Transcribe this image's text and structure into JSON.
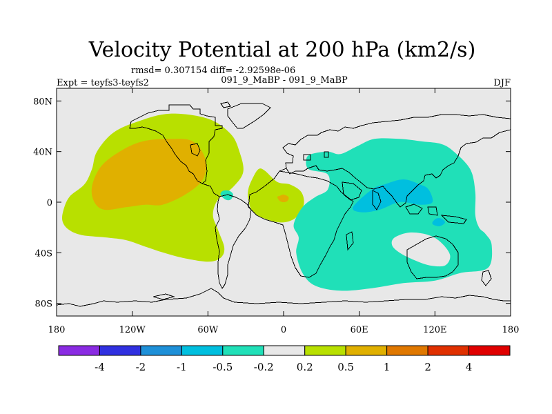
{
  "chart_data": {
    "type": "filled-contour-map",
    "title": "Velocity Potential at 200 hPa (km2/s)",
    "stats_line": "rmsd= 0.307154 diff= -2.92598e-06",
    "left_label": "Expt = teyfs3-teyfs2",
    "center_label": "091_9_MaBP - 091_9_MaBP",
    "right_label": "DJF",
    "xlim": [
      -180,
      180
    ],
    "ylim": [
      -90,
      90
    ],
    "x_ticks": [
      {
        "value": -180,
        "label": "180"
      },
      {
        "value": -120,
        "label": "120W"
      },
      {
        "value": -60,
        "label": "60W"
      },
      {
        "value": 0,
        "label": "0"
      },
      {
        "value": 60,
        "label": "60E"
      },
      {
        "value": 120,
        "label": "120E"
      },
      {
        "value": 180,
        "label": "180"
      }
    ],
    "y_ticks": [
      {
        "value": 80,
        "label": "80N"
      },
      {
        "value": 40,
        "label": "40N"
      },
      {
        "value": 0,
        "label": "0"
      },
      {
        "value": -40,
        "label": "40S"
      },
      {
        "value": -80,
        "label": "80S"
      }
    ],
    "colorbar": {
      "colors": [
        "#8a2be2",
        "#3030e0",
        "#1e90d8",
        "#00bfdf",
        "#20e0b8",
        "#e8e8e8",
        "#b8e000",
        "#e0b000",
        "#e07800",
        "#e03000",
        "#e00000"
      ],
      "labels": [
        "-4",
        "-2",
        "-1",
        "-0.5",
        "-0.2",
        "0.2",
        "0.5",
        "1",
        "2",
        "4"
      ]
    },
    "regions": [
      {
        "level": "0.2 to 0.5",
        "fill": "#b8e000",
        "points": [
          [
            -175,
            -16
          ],
          [
            -170,
            -22
          ],
          [
            -160,
            -26
          ],
          [
            -140,
            -28
          ],
          [
            -125,
            -30
          ],
          [
            -110,
            -35
          ],
          [
            -95,
            -40
          ],
          [
            -80,
            -44
          ],
          [
            -60,
            -47
          ],
          [
            -50,
            -44
          ],
          [
            -47,
            -36
          ],
          [
            -52,
            -22
          ],
          [
            -56,
            -10
          ],
          [
            -52,
            2
          ],
          [
            -40,
            12
          ],
          [
            -32,
            24
          ],
          [
            -35,
            40
          ],
          [
            -42,
            54
          ],
          [
            -60,
            66
          ],
          [
            -90,
            70
          ],
          [
            -115,
            64
          ],
          [
            -135,
            55
          ],
          [
            -148,
            40
          ],
          [
            -152,
            26
          ],
          [
            -158,
            14
          ],
          [
            -170,
            4
          ],
          [
            -175,
            -8
          ]
        ]
      },
      {
        "level": "0.5 to 1",
        "fill": "#e0b000",
        "points": [
          [
            -152,
            12
          ],
          [
            -150,
            0
          ],
          [
            -142,
            -6
          ],
          [
            -125,
            -4
          ],
          [
            -110,
            -2
          ],
          [
            -96,
            -2
          ],
          [
            -78,
            6
          ],
          [
            -64,
            18
          ],
          [
            -62,
            34
          ],
          [
            -72,
            48
          ],
          [
            -90,
            50
          ],
          [
            -112,
            48
          ],
          [
            -130,
            40
          ],
          [
            -145,
            28
          ]
        ]
      },
      {
        "level": "0.2 to 0.5",
        "fill": "#b8e000",
        "points": [
          [
            -28,
            2
          ],
          [
            -24,
            -8
          ],
          [
            -12,
            -14
          ],
          [
            0,
            -16
          ],
          [
            10,
            -12
          ],
          [
            16,
            -2
          ],
          [
            14,
            8
          ],
          [
            5,
            14
          ],
          [
            -5,
            16
          ],
          [
            -15,
            25
          ],
          [
            -20,
            26
          ],
          [
            -25,
            18
          ],
          [
            -28,
            10
          ]
        ]
      },
      {
        "level": "0.5 to 1",
        "fill": "#e0b000",
        "points": [
          [
            -5,
            4
          ],
          [
            -3,
            1
          ],
          [
            0,
            0
          ],
          [
            3,
            1
          ],
          [
            4,
            4
          ],
          [
            0,
            6
          ],
          [
            -3,
            5
          ]
        ]
      },
      {
        "level": "-0.5 to -0.2",
        "fill": "#20e0b8",
        "points": [
          [
            -50,
            6
          ],
          [
            -46,
            2
          ],
          [
            -42,
            2
          ],
          [
            -40,
            6
          ],
          [
            -43,
            9
          ],
          [
            -48,
            9
          ]
        ]
      },
      {
        "level": "-0.5 to -0.2",
        "fill": "#20e0b8",
        "points": [
          [
            18,
            34
          ],
          [
            22,
            38
          ],
          [
            35,
            40
          ],
          [
            45,
            38
          ],
          [
            58,
            44
          ],
          [
            72,
            50
          ],
          [
            92,
            50
          ],
          [
            110,
            48
          ],
          [
            125,
            46
          ],
          [
            135,
            40
          ],
          [
            148,
            26
          ],
          [
            152,
            8
          ],
          [
            152,
            -10
          ],
          [
            155,
            -20
          ],
          [
            160,
            -25
          ],
          [
            165,
            -34
          ],
          [
            162,
            -52
          ],
          [
            140,
            -56
          ],
          [
            120,
            -62
          ],
          [
            95,
            -64
          ],
          [
            70,
            -68
          ],
          [
            45,
            -70
          ],
          [
            25,
            -66
          ],
          [
            15,
            -56
          ],
          [
            10,
            -40
          ],
          [
            12,
            -28
          ],
          [
            8,
            -18
          ],
          [
            15,
            -4
          ],
          [
            25,
            4
          ],
          [
            35,
            10
          ],
          [
            35,
            22
          ],
          [
            20,
            26
          ]
        ]
      },
      {
        "level": "-0.2 to 0.2",
        "fill": "#e8e8e8",
        "points": [
          [
            88,
            -28
          ],
          [
            100,
            -24
          ],
          [
            115,
            -26
          ],
          [
            125,
            -32
          ],
          [
            132,
            -42
          ],
          [
            128,
            -50
          ],
          [
            116,
            -50
          ],
          [
            104,
            -46
          ],
          [
            92,
            -40
          ],
          [
            86,
            -34
          ]
        ]
      },
      {
        "level": "-1 to -0.5",
        "fill": "#00bfdf",
        "points": [
          [
            55,
            -4
          ],
          [
            70,
            10
          ],
          [
            80,
            14
          ],
          [
            95,
            18
          ],
          [
            108,
            14
          ],
          [
            115,
            10
          ],
          [
            118,
            0
          ],
          [
            108,
            -2
          ],
          [
            92,
            0
          ],
          [
            76,
            -6
          ],
          [
            62,
            -8
          ]
        ]
      },
      {
        "level": "-1 to -0.5",
        "fill": "#00bfdf",
        "points": [
          [
            118,
            -16
          ],
          [
            121,
            -13
          ],
          [
            125,
            -13
          ],
          [
            128,
            -16
          ],
          [
            124,
            -19
          ],
          [
            119,
            -18
          ]
        ]
      }
    ]
  }
}
